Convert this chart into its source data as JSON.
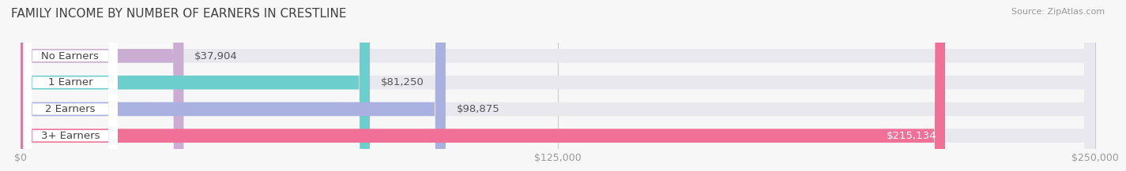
{
  "title": "FAMILY INCOME BY NUMBER OF EARNERS IN CRESTLINE",
  "source": "Source: ZipAtlas.com",
  "categories": [
    "No Earners",
    "1 Earner",
    "2 Earners",
    "3+ Earners"
  ],
  "values": [
    37904,
    81250,
    98875,
    215134
  ],
  "bar_colors": [
    "#cbadd4",
    "#6dcece",
    "#aab0e0",
    "#f07098"
  ],
  "bar_bg_color": "#e8e8ee",
  "max_value": 250000,
  "x_ticks": [
    0,
    125000,
    250000
  ],
  "x_tick_labels": [
    "$0",
    "$125,000",
    "$250,000"
  ],
  "value_labels": [
    "$37,904",
    "$81,250",
    "$98,875",
    "$215,134"
  ],
  "title_fontsize": 11,
  "label_fontsize": 9.5,
  "tick_fontsize": 9,
  "background_color": "#f7f7f7"
}
